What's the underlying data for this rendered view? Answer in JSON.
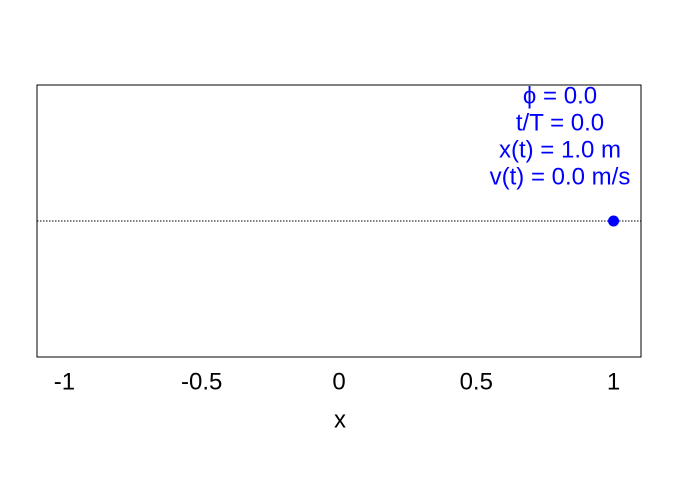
{
  "chart_data": {
    "type": "scatter",
    "annotations": [
      "ϕ = 0.0",
      "t/T = 0.0",
      "x(t) = 1.0 m",
      "v(t) = 0.0 m/s"
    ],
    "annotation_color": "#0000ff",
    "x": [
      1
    ],
    "values": [
      0
    ],
    "color": "#0000ff",
    "hline": 0,
    "xlabel": "x",
    "xlim": [
      -1.1,
      1.1
    ],
    "xticks": [
      -1,
      -0.5,
      0,
      0.5,
      1
    ],
    "ylim": [
      -1,
      1
    ]
  }
}
